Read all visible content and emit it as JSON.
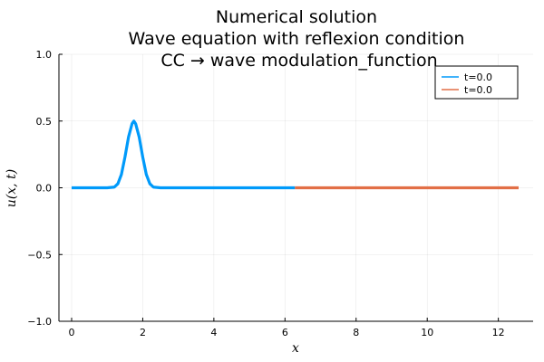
{
  "chart_data": {
    "type": "line",
    "title_lines": [
      "Numerical solution",
      "Wave equation with reflexion condition",
      "CC → wave modulation_function"
    ],
    "xlabel": "x",
    "ylabel": "u(x, t)",
    "xlim": [
      0,
      12.57
    ],
    "ylim": [
      -1.0,
      1.0
    ],
    "x_ticks": [
      0,
      2,
      4,
      6,
      8,
      10,
      12
    ],
    "x_tick_labels": [
      "0",
      "2",
      "4",
      "6",
      "8",
      "10",
      "12"
    ],
    "y_ticks": [
      -1.0,
      -0.5,
      0.0,
      0.5,
      1.0
    ],
    "y_tick_labels": [
      "−1.0",
      "−0.5",
      "0.0",
      "0.5",
      "1.0"
    ],
    "grid": true,
    "legend_position": "top-right",
    "series": [
      {
        "name": "t=0.0",
        "color": "#009AFA",
        "x": [
          0.0,
          1.0,
          1.2,
          1.3,
          1.4,
          1.5,
          1.6,
          1.7,
          1.75,
          1.8,
          1.9,
          2.0,
          2.1,
          2.2,
          2.3,
          2.5,
          3.0,
          4.0,
          5.0,
          6.28
        ],
        "y": [
          0.0,
          0.0,
          0.005,
          0.03,
          0.1,
          0.23,
          0.38,
          0.48,
          0.5,
          0.48,
          0.38,
          0.23,
          0.1,
          0.03,
          0.005,
          0.0,
          0.0,
          0.0,
          0.0,
          0.0
        ]
      },
      {
        "name": "t=0.0",
        "color": "#E26F46",
        "x": [
          6.28,
          8.0,
          10.0,
          12.57
        ],
        "y": [
          0.0,
          0.0,
          0.0,
          0.0
        ]
      }
    ]
  }
}
